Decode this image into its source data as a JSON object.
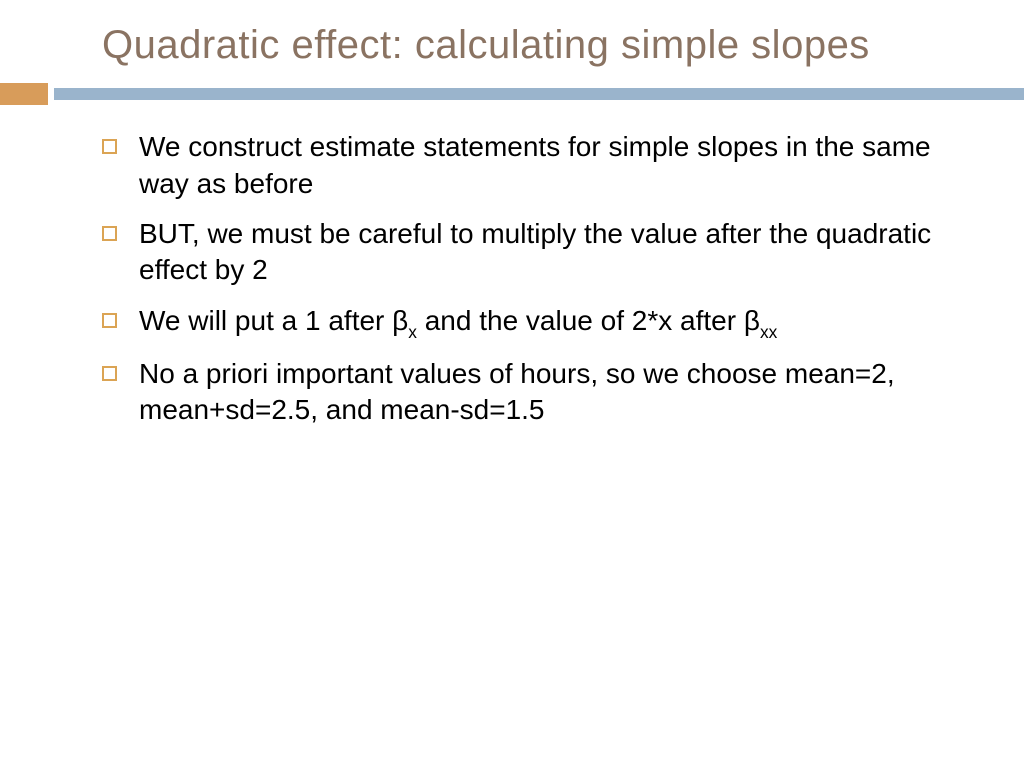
{
  "colors": {
    "title_text": "#8a7362",
    "accent_orange": "#d89c5a",
    "accent_blue": "#9ab4cc",
    "bullet_border": "#dba454",
    "body_text": "#000000"
  },
  "title": "Quadratic effect: calculating simple slopes",
  "bullets": [
    {
      "text": "We construct estimate statements for simple slopes in the same way as before"
    },
    {
      "text": "BUT, we must be careful to multiply the value after the quadratic effect by 2"
    },
    {
      "parts": [
        "We will put a 1 after β",
        {
          "sub": "x"
        },
        " and the value of 2*x after β",
        {
          "sub": "xx"
        }
      ]
    },
    {
      "text": "No a priori important values of hours, so we choose mean=2, mean+sd=2.5, and mean-sd=1.5"
    }
  ]
}
